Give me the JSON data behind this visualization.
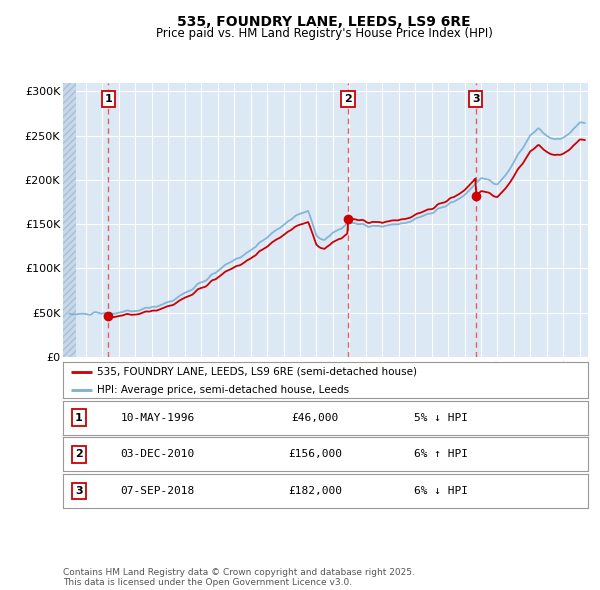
{
  "title": "535, FOUNDRY LANE, LEEDS, LS9 6RE",
  "subtitle": "Price paid vs. HM Land Registry's House Price Index (HPI)",
  "plot_bg_color": "#dce9f5",
  "ylim": [
    0,
    310000
  ],
  "yticks": [
    0,
    50000,
    100000,
    150000,
    200000,
    250000,
    300000
  ],
  "ytick_labels": [
    "£0",
    "£50K",
    "£100K",
    "£150K",
    "£200K",
    "£250K",
    "£300K"
  ],
  "xlim_start": 1993.6,
  "xlim_end": 2025.5,
  "xticks": [
    1994,
    1995,
    1996,
    1997,
    1998,
    1999,
    2000,
    2001,
    2002,
    2003,
    2004,
    2005,
    2006,
    2007,
    2008,
    2009,
    2010,
    2011,
    2012,
    2013,
    2014,
    2015,
    2016,
    2017,
    2018,
    2019,
    2020,
    2021,
    2022,
    2023,
    2024,
    2025
  ],
  "hpi_color": "#7bafd4",
  "price_color": "#cc0000",
  "vline_color": "#e06060",
  "sale_dates": [
    1996.36,
    2010.92,
    2018.68
  ],
  "sale_prices": [
    46000,
    156000,
    182000
  ],
  "sale_labels": [
    "1",
    "2",
    "3"
  ],
  "legend_entries": [
    "535, FOUNDRY LANE, LEEDS, LS9 6RE (semi-detached house)",
    "HPI: Average price, semi-detached house, Leeds"
  ],
  "table_rows": [
    [
      "1",
      "10-MAY-1996",
      "£46,000",
      "5% ↓ HPI"
    ],
    [
      "2",
      "03-DEC-2010",
      "£156,000",
      "6% ↑ HPI"
    ],
    [
      "3",
      "07-SEP-2018",
      "£182,000",
      "6% ↓ HPI"
    ]
  ],
  "footer": "Contains HM Land Registry data © Crown copyright and database right 2025.\nThis data is licensed under the Open Government Licence v3.0.",
  "hatch_end_year": 1994.42
}
